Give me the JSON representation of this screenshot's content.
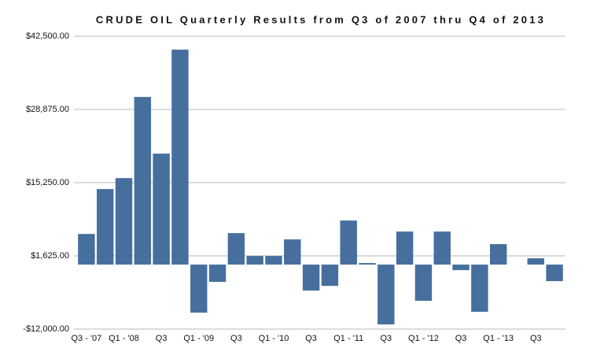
{
  "chart_data": {
    "type": "bar",
    "title": "CRUDE OIL Quarterly Results from Q3 of 2007 thru Q4 of 2013",
    "categories": [
      "Q3 - '07",
      null,
      "Q1 - '08",
      null,
      "Q3",
      null,
      "Q1 - '09",
      null,
      "Q3",
      null,
      "Q1 - '10",
      null,
      "Q3",
      null,
      "Q1 - '11",
      null,
      "Q3",
      null,
      "Q1 - '12",
      null,
      "Q3",
      null,
      "Q1 - '13",
      null,
      "Q3",
      null
    ],
    "values": [
      5700,
      14060,
      16100,
      31200,
      20650,
      40000,
      -8940,
      -3220,
      5860,
      1610,
      1610,
      4690,
      -4830,
      -3960,
      8200,
      290,
      -11130,
      6150,
      -6740,
      6150,
      -1030,
      -8790,
      3810,
      0,
      1170,
      -3080
    ],
    "color": "#466f9e",
    "ylim": [
      -12000,
      42500
    ],
    "yticks": [
      {
        "value": -12000,
        "label": "-$12,000.00"
      },
      {
        "value": 1625,
        "label": "$1,625.00"
      },
      {
        "value": 15250,
        "label": "$15,250.00"
      },
      {
        "value": 28875,
        "label": "$28,875.00"
      },
      {
        "value": 42500,
        "label": "$42,500.00"
      }
    ],
    "grid": true
  }
}
